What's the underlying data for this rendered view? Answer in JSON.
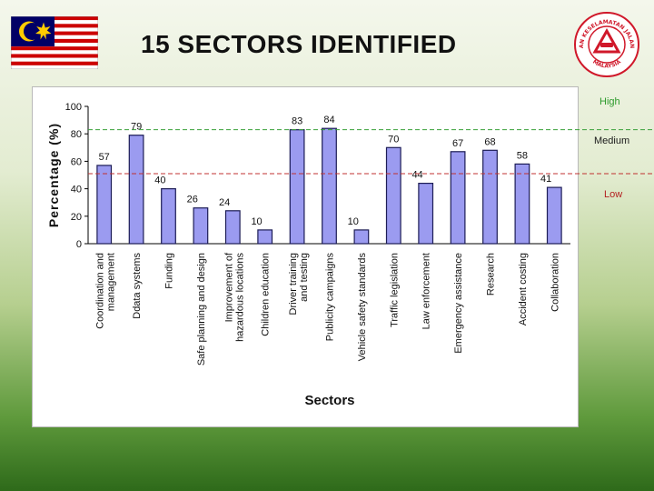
{
  "slide": {
    "title": "15 SECTORS IDENTIFIED"
  },
  "colors": {
    "bar_fill": "#9b9bf0",
    "bar_stroke": "#1c1c55",
    "high_line": "#3aa03a",
    "low_line": "#c03030",
    "flag_red": "#cc0001",
    "flag_blue": "#010066",
    "flag_yellow": "#ffcc00",
    "emblem_red": "#d0182a"
  },
  "icons": {
    "flag": "malaysia-flag-icon",
    "emblem": "road-safety-department-emblem-icon"
  },
  "emblem": {
    "top_text": "JABATAN KESELAMATAN JALAN RAYA",
    "bottom_text": "MALAYSIA"
  },
  "band_labels": {
    "high": "High",
    "medium": "Medium",
    "low": "Low"
  },
  "chart_data": {
    "type": "bar",
    "title": "",
    "xlabel": "Sectors",
    "ylabel": "Percentage (%)",
    "ylim": [
      0,
      100
    ],
    "yticks": [
      0,
      20,
      40,
      60,
      80,
      100
    ],
    "grid": false,
    "categories": [
      "Coordination and management",
      "Ddata systems",
      "Funding",
      "Safe planning and design",
      "Improvement of hazardous locations",
      "Children education",
      "Driver training and testing",
      "Publicity campaigns",
      "Vehicle safety standards",
      "Traffic legislation",
      "Law  enforcement",
      "Emergency assistance",
      "Research",
      "Accident costing",
      "Collaboration"
    ],
    "values": [
      57,
      79,
      40,
      26,
      24,
      10,
      83,
      84,
      10,
      70,
      44,
      67,
      68,
      58,
      41
    ],
    "reference_lines": [
      {
        "y": 83,
        "color": "#3aa03a",
        "style": "dashed"
      },
      {
        "y": 51,
        "color": "#c03030",
        "style": "dashed"
      }
    ]
  }
}
